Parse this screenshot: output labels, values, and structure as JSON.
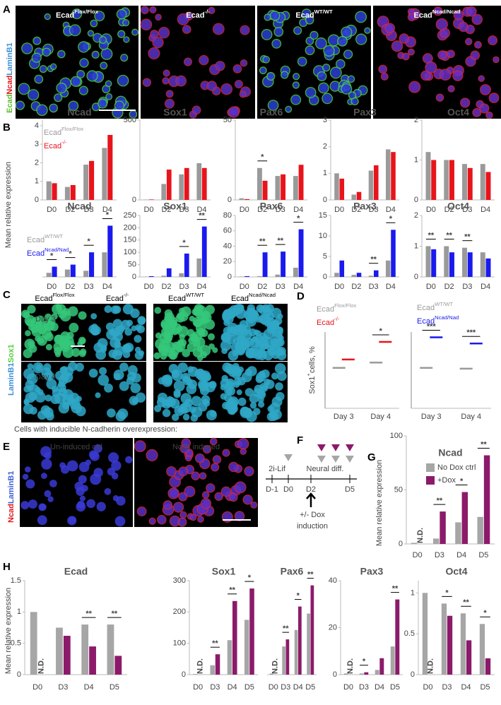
{
  "panel_labels": [
    "A",
    "B",
    "C",
    "D",
    "E",
    "F",
    "G",
    "H"
  ],
  "panel_a": {
    "images": [
      {
        "base": "Ecad",
        "sup": "Flox/Flox"
      },
      {
        "base": "Ecad",
        "sup": "-/-"
      },
      {
        "base": "Ecad",
        "sup": "WT/WT"
      },
      {
        "base": "Ecad",
        "sup": "Ncad/Ncad"
      }
    ],
    "stain": [
      "Ecad",
      "Ncad",
      "LaminB1"
    ]
  },
  "panel_c": {
    "columns": [
      {
        "base": "Ecad",
        "sup": "Flox/Flox"
      },
      {
        "base": "Ecad",
        "sup": "-/-"
      },
      {
        "base": "Ecad",
        "sup": "WT/WT"
      },
      {
        "base": "Ecad",
        "sup": "Ncad/Ncad"
      }
    ],
    "rows": [
      "Day 3",
      "Day 4"
    ],
    "stain": [
      "LaminB1",
      "Sox1"
    ]
  },
  "panel_e": {
    "title": "Cells with inducible N-cadherin overexpression:",
    "images": [
      "Un-induced ctrl",
      "Ncad induced"
    ],
    "stain": [
      "Ncad",
      "LaminB1"
    ]
  },
  "panel_f": {
    "phases": [
      "2i-Lif",
      "Neural diff."
    ],
    "days": [
      "D-1",
      "D0",
      "D2",
      "D5"
    ],
    "note": [
      "+/- Dox",
      "induction"
    ]
  },
  "chart_data": [
    {
      "type": "bar",
      "title": "Ncad",
      "ylabel": "Mean relative expression",
      "categories": [
        "D0",
        "D2",
        "D3",
        "D4"
      ],
      "series": [
        {
          "name": "Ecad",
          "superscript": "Flox/Flox",
          "color": "#9a9a9a",
          "values": [
            1.0,
            0.7,
            1.9,
            2.8
          ]
        },
        {
          "name": "Ecad",
          "superscript": "-/-",
          "color": "#e8141b",
          "values": [
            0.9,
            0.8,
            2.1,
            3.5
          ]
        }
      ],
      "ylim": [
        0,
        4.3
      ],
      "yticks": [
        0,
        1,
        2,
        3,
        4
      ]
    },
    {
      "type": "bar",
      "title": "Sox1",
      "categories": [
        "D0",
        "D2",
        "D3",
        "D4"
      ],
      "series": [
        {
          "color": "#9a9a9a",
          "values": [
            2,
            100,
            160,
            230
          ]
        },
        {
          "color": "#e8141b",
          "values": [
            3,
            190,
            200,
            200
          ]
        }
      ],
      "ylim": [
        0,
        500
      ],
      "yticks": [
        0,
        500
      ]
    },
    {
      "type": "bar",
      "title": "Pax6",
      "categories": [
        "D0",
        "D2",
        "D3",
        "D4"
      ],
      "series": [
        {
          "color": "#9a9a9a",
          "values": [
            1,
            20,
            15,
            15
          ]
        },
        {
          "color": "#e8141b",
          "values": [
            0.5,
            12,
            16,
            22
          ]
        }
      ],
      "ylim": [
        0,
        50
      ],
      "yticks": [
        0,
        50
      ],
      "annotations": [
        {
          "text": "*",
          "category": "D2"
        }
      ]
    },
    {
      "type": "bar",
      "title": "Pax3",
      "categories": [
        "D0",
        "D2",
        "D3",
        "D4"
      ],
      "series": [
        {
          "color": "#9a9a9a",
          "values": [
            1.0,
            0.2,
            1.1,
            1.9
          ]
        },
        {
          "color": "#e8141b",
          "values": [
            0.8,
            0.3,
            1.3,
            1.8
          ]
        }
      ],
      "ylim": [
        0,
        3
      ],
      "yticks": [
        0,
        1,
        2,
        3
      ]
    },
    {
      "type": "bar",
      "title": "Oct4",
      "categories": [
        "D0",
        "D2",
        "D3",
        "D4"
      ],
      "series": [
        {
          "color": "#9a9a9a",
          "values": [
            1.2,
            1.0,
            0.9,
            0.9
          ]
        },
        {
          "color": "#e8141b",
          "values": [
            1.0,
            1.0,
            0.8,
            0.7
          ]
        }
      ],
      "ylim": [
        0,
        2
      ],
      "yticks": [
        0,
        1,
        2
      ]
    },
    {
      "type": "bar",
      "title": "Ncad",
      "categories": [
        "D0",
        "D2",
        "D3",
        "D4"
      ],
      "series": [
        {
          "name": "Ecad",
          "superscript": "WT/WT",
          "color": "#9a9a9a",
          "values": [
            1,
            1.8,
            1.5,
            6
          ]
        },
        {
          "name": "Ecad",
          "superscript": "Ncad/Nad",
          "color": "#1a1aee",
          "values": [
            2.5,
            3,
            6,
            12.5
          ]
        }
      ],
      "ylim": [
        0,
        15
      ],
      "annotations": [
        {
          "text": "*",
          "category": "D0"
        },
        {
          "text": "*",
          "category": "D2"
        },
        {
          "text": "*",
          "category": "D3"
        },
        {
          "text": "*",
          "category": "D4"
        }
      ]
    },
    {
      "type": "bar",
      "title": "Sox1",
      "categories": [
        "D0",
        "D2",
        "D3",
        "D4"
      ],
      "series": [
        {
          "color": "#9a9a9a",
          "values": [
            1,
            5,
            15,
            75
          ]
        },
        {
          "color": "#1a1aee",
          "values": [
            3,
            35,
            95,
            205
          ]
        }
      ],
      "ylim": [
        0,
        250
      ],
      "yticks": [
        0,
        50,
        100,
        150,
        200,
        250
      ],
      "annotations": [
        {
          "text": "*",
          "category": "D3"
        },
        {
          "text": "**",
          "category": "D4"
        }
      ]
    },
    {
      "type": "bar",
      "title": "Pax6",
      "categories": [
        "D0",
        "D2",
        "D3",
        "D4"
      ],
      "series": [
        {
          "color": "#9a9a9a",
          "values": [
            0.5,
            1,
            3,
            12
          ]
        },
        {
          "color": "#1a1aee",
          "values": [
            1,
            32,
            33,
            62
          ]
        }
      ],
      "ylim": [
        0,
        80
      ],
      "yticks": [
        0,
        20,
        40,
        60,
        80
      ],
      "annotations": [
        {
          "text": "**",
          "category": "D2"
        },
        {
          "text": "**",
          "category": "D3"
        },
        {
          "text": "*",
          "category": "D4"
        }
      ]
    },
    {
      "type": "bar",
      "title": "Pax3",
      "categories": [
        "D0",
        "D2",
        "D3",
        "D4"
      ],
      "series": [
        {
          "color": "#9a9a9a",
          "values": [
            1,
            0.5,
            0.3,
            4
          ]
        },
        {
          "color": "#1a1aee",
          "values": [
            4,
            1,
            1.6,
            11.5
          ]
        }
      ],
      "ylim": [
        0,
        15
      ],
      "yticks": [
        0,
        5,
        10,
        15
      ],
      "annotations": [
        {
          "text": "**",
          "category": "D3"
        },
        {
          "text": "*",
          "category": "D4"
        }
      ]
    },
    {
      "type": "bar",
      "title": "Oct4",
      "categories": [
        "D0",
        "D2",
        "D3",
        "D4"
      ],
      "series": [
        {
          "color": "#9a9a9a",
          "values": [
            1.0,
            1.0,
            0.95,
            0.8
          ]
        },
        {
          "color": "#1a1aee",
          "values": [
            0.9,
            0.8,
            0.8,
            0.6
          ]
        }
      ],
      "ylim": [
        0,
        2
      ],
      "yticks": [
        0,
        1,
        2
      ],
      "annotations": [
        {
          "text": "**",
          "category": "D0"
        },
        {
          "text": "**",
          "category": "D2"
        },
        {
          "text": "**",
          "category": "D3"
        }
      ]
    },
    {
      "type": "dot",
      "ylabel": "Sox1",
      "ylabel_superscript": "+",
      "ylabel_rest": "cells, %",
      "categories": [
        "Day 3",
        "Day 4"
      ],
      "series": [
        {
          "name": "Ecad",
          "superscript": "Flox/Flox",
          "color": "#9a9a9a",
          "values": [
            53,
            60
          ]
        },
        {
          "name": "Ecad",
          "superscript": "-/-",
          "color": "#e8141b",
          "values": [
            64,
            87
          ]
        }
      ],
      "ylim": [
        0,
        100
      ],
      "annotations": [
        {
          "text": "*",
          "category": "Day 4"
        }
      ]
    },
    {
      "type": "dot",
      "categories": [
        "Day 3",
        "Day 4"
      ],
      "series": [
        {
          "name": "Ecad",
          "superscript": "WT/WT",
          "color": "#9a9a9a",
          "values": [
            53,
            52
          ]
        },
        {
          "name": "Ecad",
          "superscript": "Ncad/Nad",
          "color": "#1a1aee",
          "values": [
            93,
            85
          ]
        }
      ],
      "ylim": [
        0,
        100
      ],
      "annotations": [
        {
          "text": "***",
          "category": "Day 3"
        },
        {
          "text": "***",
          "category": "Day 4"
        }
      ]
    },
    {
      "type": "bar",
      "title": "Ncad",
      "ylabel": "Mean relative expression",
      "categories": [
        "D0",
        "D3",
        "D4",
        "D5"
      ],
      "series": [
        {
          "name": "No Dox ctrl",
          "color": "#a6a6a6",
          "values": [
            1,
            5,
            20,
            25
          ]
        },
        {
          "name": "+Dox",
          "color": "#8c1a6a",
          "values": [
            null,
            30,
            48,
            82
          ],
          "value_labels": [
            "N.D.",
            null,
            null,
            null
          ]
        }
      ],
      "ylim": [
        0,
        100
      ],
      "yticks": [
        0,
        50,
        100
      ],
      "annotations": [
        {
          "text": "**",
          "category": "D3"
        },
        {
          "text": "*",
          "category": "D4"
        },
        {
          "text": "**",
          "category": "D5"
        }
      ]
    },
    {
      "type": "bar",
      "title": "Ecad",
      "ylabel": "Mean relative expression",
      "categories": [
        "D0",
        "D3",
        "D4",
        "D5"
      ],
      "series": [
        {
          "color": "#a6a6a6",
          "values": [
            1.0,
            0.75,
            0.8,
            0.8
          ]
        },
        {
          "color": "#8c1a6a",
          "values": [
            null,
            0.62,
            0.45,
            0.3
          ],
          "value_labels": [
            "N.D.",
            null,
            null,
            null
          ]
        }
      ],
      "ylim": [
        0,
        1.5
      ],
      "yticks": [
        0,
        0.5,
        1,
        1.5
      ],
      "annotations": [
        {
          "text": "**",
          "category": "D4"
        },
        {
          "text": "**",
          "category": "D5"
        }
      ]
    },
    {
      "type": "bar",
      "title": "Sox1",
      "categories": [
        "D0",
        "D3",
        "D4",
        "D5"
      ],
      "series": [
        {
          "color": "#a6a6a6",
          "values": [
            2,
            30,
            110,
            175
          ]
        },
        {
          "color": "#8c1a6a",
          "values": [
            null,
            65,
            235,
            275
          ],
          "value_labels": [
            "N.D.",
            null,
            null,
            null
          ]
        }
      ],
      "ylim": [
        0,
        300
      ],
      "yticks": [
        0,
        100,
        200,
        300
      ],
      "annotations": [
        {
          "text": "**",
          "category": "D3"
        },
        {
          "text": "**",
          "category": "D4"
        },
        {
          "text": "*",
          "category": "D5"
        }
      ]
    },
    {
      "type": "bar",
      "title": "Pax6",
      "categories": [
        "D0",
        "D3",
        "D4",
        "D5"
      ],
      "series": [
        {
          "color": "#a6a6a6",
          "values": [
            0.5,
            12,
            19,
            26
          ]
        },
        {
          "color": "#8c1a6a",
          "values": [
            null,
            15,
            29,
            38
          ],
          "value_labels": [
            "N.D.",
            null,
            null,
            null
          ]
        }
      ],
      "ylim": [
        0,
        40
      ],
      "annotations": [
        {
          "text": "**",
          "category": "D3"
        },
        {
          "text": "*",
          "category": "D4"
        },
        {
          "text": "**",
          "category": "D5"
        }
      ]
    },
    {
      "type": "bar",
      "title": "Pax3",
      "categories": [
        "D0",
        "D3",
        "D4",
        "D5"
      ],
      "series": [
        {
          "color": "#a6a6a6",
          "values": [
            0.5,
            0.5,
            2,
            12
          ]
        },
        {
          "color": "#8c1a6a",
          "values": [
            null,
            1,
            7,
            32
          ],
          "value_labels": [
            "N.D.",
            null,
            null,
            null
          ]
        }
      ],
      "ylim": [
        0,
        40
      ],
      "yticks": [
        0,
        20,
        40
      ],
      "annotations": [
        {
          "text": "*",
          "category": "D3"
        },
        {
          "text": "**",
          "category": "D5"
        }
      ]
    },
    {
      "type": "bar",
      "title": "Oct4",
      "categories": [
        "D0",
        "D3",
        "D4",
        "D5"
      ],
      "series": [
        {
          "color": "#a6a6a6",
          "values": [
            1.0,
            0.87,
            0.75,
            0.62
          ]
        },
        {
          "color": "#8c1a6a",
          "values": [
            null,
            0.72,
            0.42,
            0.2
          ],
          "value_labels": [
            "N.D.",
            null,
            null,
            null
          ]
        }
      ],
      "ylim": [
        0,
        1.15
      ],
      "yticks": [
        0,
        0.5,
        1
      ],
      "annotations": [
        {
          "text": "*",
          "category": "D3"
        },
        {
          "text": "**",
          "category": "D4"
        },
        {
          "text": "*",
          "category": "D5"
        }
      ]
    }
  ]
}
